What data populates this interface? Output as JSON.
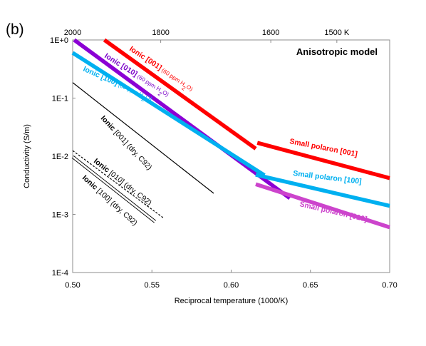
{
  "panel_label": "(b)",
  "chart_data": {
    "type": "line",
    "title": "Anisotropic model",
    "xlabel": "Reciprocal temperature (1000/K)",
    "ylabel": "Conductivity (S/m)",
    "xlim": [
      0.5,
      0.7
    ],
    "ylog": true,
    "ylim": [
      0.0001,
      1
    ],
    "grid": false,
    "x_ticks": [
      0.5,
      0.55,
      0.6,
      0.65,
      0.7
    ],
    "x_tick_labels": [
      "0.50",
      "0.55",
      "0.60",
      "0.65",
      "0.70"
    ],
    "y_ticks": [
      0.0001,
      0.001,
      0.01,
      0.1,
      1
    ],
    "y_tick_labels": [
      "1E-4",
      "1E-3",
      "1E-2",
      "1E-1",
      "1E+0"
    ],
    "top_axis": {
      "unit": "temperature",
      "ticks": [
        2000,
        1800,
        1600,
        1500
      ],
      "tick_labels": [
        "2000",
        "1800",
        "1600",
        "1500 K"
      ]
    },
    "series": [
      {
        "name": "Ionic [001] (60 ppm H2O)",
        "color": "#ff0000",
        "width": 5.5,
        "x": [
          0.52,
          0.6155
        ],
        "y": [
          1.0,
          0.0135
        ],
        "label": {
          "bold": "Ionic [001]",
          "rest": "(60 ppm H",
          "sub": "2",
          "tail": "O)",
          "color": "#ff0000"
        }
      },
      {
        "name": "Ionic [010] (60 ppm H2O)",
        "color": "#8b00d4",
        "width": 5.5,
        "x": [
          0.501,
          0.637
        ],
        "y": [
          1.0,
          0.0019
        ],
        "label": {
          "bold": "Ionic [010]",
          "rest": "(60 ppm H",
          "sub": "2",
          "tail": "O)",
          "color": "#7a00c8"
        }
      },
      {
        "name": "Ionic [100] (60 ppm H2O)",
        "color": "#00b0f0",
        "width": 5.5,
        "x": [
          0.5,
          0.621
        ],
        "y": [
          0.6,
          0.0047
        ],
        "label": {
          "bold": "Ionic [100]",
          "rest": "(60 ppm H",
          "sub": "2",
          "tail": "O)",
          "color": "#00b0f0"
        }
      },
      {
        "name": "Small polaron [001]",
        "color": "#ff0000",
        "width": 5.5,
        "x": [
          0.6165,
          0.7
        ],
        "y": [
          0.017,
          0.0042
        ],
        "label": {
          "bold": "Small polaron [001]",
          "color": "#ff0000"
        }
      },
      {
        "name": "Small polaron [100]",
        "color": "#00b0f0",
        "width": 5.5,
        "x": [
          0.6155,
          0.7
        ],
        "y": [
          0.0048,
          0.0014
        ],
        "label": {
          "bold": "Small polaron [100]",
          "color": "#00b0f0"
        }
      },
      {
        "name": "Small polaron [010]",
        "color": "#cc44cc",
        "width": 5.5,
        "x": [
          0.6155,
          0.7
        ],
        "y": [
          0.0033,
          0.0006
        ],
        "label": {
          "bold": "Small polaron [010]",
          "color": "#cc44cc"
        }
      },
      {
        "name": "Ionic [001] (dry, C92)",
        "color": "#000000",
        "width": 1.2,
        "x": [
          0.5,
          0.589
        ],
        "y": [
          0.185,
          0.0023
        ],
        "label": {
          "bold": "Ionic",
          "rest": "[001] (dry, C92)",
          "color": "#000000"
        }
      },
      {
        "name": "Ionic [010] (dry, C92)",
        "color": "#000000",
        "width": 1.2,
        "dash": "3,2",
        "x": [
          0.5,
          0.557
        ],
        "y": [
          0.0125,
          0.00088
        ],
        "label": {
          "bold": "Ionic",
          "rest": "[010] (dry, C92)",
          "color": "#000000"
        }
      },
      {
        "name": "Ionic [100] (dry, C92)",
        "color": "#000000",
        "width": 1.2,
        "double": true,
        "x": [
          0.5,
          0.552
        ],
        "y": [
          0.0098,
          0.00075
        ],
        "label": {
          "bold": "Ionic",
          "rest": "[100] (dry, C92)",
          "color": "#000000"
        }
      }
    ]
  }
}
